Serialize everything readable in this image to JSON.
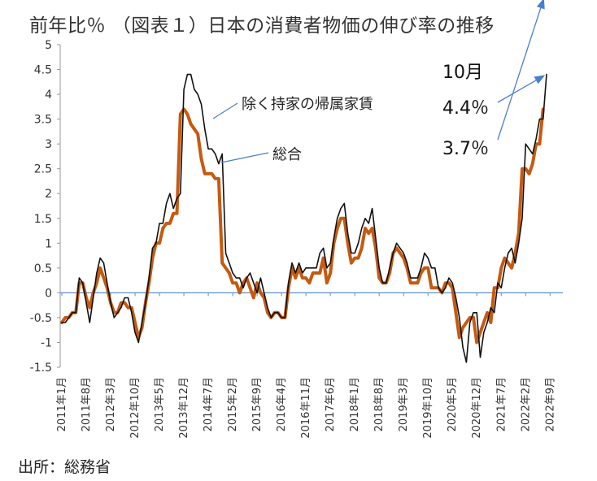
{
  "title": "前年比％ （図表１）日本の消費者物価の伸び率の推移",
  "source": "出所：総務省",
  "colors": {
    "core_rent": "#111111",
    "overall": "#c55a11",
    "zero_line": "#5b8fc9",
    "arrow": "#4a7fd0",
    "axis": "#999999"
  },
  "chart_data": {
    "type": "line",
    "title": "（図表１）日本の消費者物価の伸び率の推移",
    "ylabel": "前年比％",
    "xlabel": "",
    "ylim": [
      -1.5,
      5
    ],
    "yticks": [
      "5",
      "4.5",
      "4",
      "3.5",
      "3",
      "2.5",
      "2",
      "1.5",
      "1",
      "0.5",
      "0",
      "-0.5",
      "-1",
      "-1.5"
    ],
    "ytick_values": [
      5,
      4.5,
      4,
      3.5,
      3,
      2.5,
      2,
      1.5,
      1,
      0.5,
      0,
      -0.5,
      -1,
      -1.5
    ],
    "xtick_labels": [
      "2011年1月",
      "2011年8月",
      "2012年3月",
      "2012年10月",
      "2013年5月",
      "2013年12月",
      "2014年7月",
      "2015年2月",
      "2015年9月",
      "2016年4月",
      "2016年11月",
      "2017年6月",
      "2018年1月",
      "2018年8月",
      "2019年3月",
      "2019年10月",
      "2020年5月",
      "2020年12月",
      "2021年7月",
      "2022年2月",
      "2022年9月"
    ],
    "xtick_months": [
      1,
      8,
      15,
      22,
      29,
      36,
      43,
      50,
      57,
      64,
      71,
      78,
      85,
      92,
      99,
      106,
      113,
      120,
      127,
      134,
      141
    ],
    "grid": false,
    "x_start": "2011年1月",
    "series": [
      {
        "name": "除く持家の帰属家賃",
        "color": "#111111",
        "values": [
          -0.6,
          -0.6,
          -0.5,
          -0.4,
          -0.4,
          0.3,
          0.2,
          -0.2,
          -0.6,
          -0.1,
          0.4,
          0.7,
          0.6,
          0.2,
          -0.2,
          -0.5,
          -0.4,
          -0.3,
          -0.1,
          -0.1,
          -0.4,
          -0.8,
          -1.0,
          -0.6,
          -0.2,
          0.3,
          0.9,
          1.0,
          1.4,
          1.4,
          1.8,
          2.0,
          1.7,
          1.9,
          2.0,
          4.1,
          4.4,
          4.4,
          4.1,
          4.0,
          3.8,
          3.3,
          2.9,
          2.9,
          2.8,
          2.6,
          2.8,
          0.8,
          0.6,
          0.4,
          0.3,
          0.3,
          0.1,
          0.3,
          0.4,
          0.2,
          0.0,
          0.3,
          0.0,
          -0.3,
          -0.5,
          -0.4,
          -0.4,
          -0.5,
          -0.5,
          0.2,
          0.6,
          0.4,
          0.6,
          0.4,
          0.5,
          0.5,
          0.5,
          0.5,
          0.8,
          0.9,
          0.5,
          0.6,
          1.1,
          1.5,
          1.7,
          1.8,
          1.2,
          0.8,
          0.8,
          1.0,
          1.3,
          1.5,
          1.4,
          1.7,
          1.1,
          0.5,
          0.2,
          0.2,
          0.5,
          0.8,
          1.0,
          0.9,
          0.8,
          0.6,
          0.3,
          0.3,
          0.3,
          0.5,
          0.8,
          0.7,
          0.5,
          0.5,
          0.1,
          0.0,
          0.1,
          0.3,
          0.2,
          -0.1,
          -0.5,
          -1.1,
          -1.4,
          -0.6,
          -0.4,
          -0.4,
          -1.3,
          -0.8,
          -0.6,
          -0.3,
          -0.4,
          0.2,
          0.1,
          0.5,
          0.8,
          0.9,
          0.6,
          1.0,
          1.5,
          3.0,
          2.9,
          2.8,
          3.1,
          3.5,
          3.5,
          4.4
        ]
      },
      {
        "name": "総合",
        "color": "#c55a11",
        "values": [
          -0.6,
          -0.5,
          -0.5,
          -0.4,
          -0.4,
          0.2,
          0.2,
          -0.1,
          -0.3,
          0.0,
          0.2,
          0.5,
          0.3,
          0.1,
          -0.2,
          -0.4,
          -0.4,
          -0.2,
          -0.2,
          -0.3,
          -0.3,
          -0.6,
          -0.9,
          -0.7,
          -0.2,
          0.2,
          0.7,
          1.0,
          1.0,
          1.3,
          1.4,
          1.4,
          1.6,
          1.6,
          3.6,
          3.7,
          3.6,
          3.4,
          3.3,
          3.2,
          2.7,
          2.4,
          2.4,
          2.4,
          2.3,
          2.3,
          0.6,
          0.5,
          0.4,
          0.2,
          0.2,
          0.0,
          0.2,
          0.3,
          0.1,
          -0.1,
          0.2,
          0.0,
          -0.1,
          -0.4,
          -0.5,
          -0.4,
          -0.4,
          -0.5,
          -0.5,
          0.1,
          0.5,
          0.3,
          0.5,
          0.3,
          0.3,
          0.2,
          0.4,
          0.4,
          0.4,
          0.7,
          0.2,
          0.4,
          1.0,
          1.3,
          1.5,
          1.5,
          1.0,
          0.6,
          0.7,
          0.7,
          0.9,
          1.3,
          1.2,
          1.3,
          0.9,
          0.3,
          0.2,
          0.2,
          0.4,
          0.8,
          0.9,
          0.8,
          0.7,
          0.5,
          0.2,
          0.2,
          0.2,
          0.4,
          0.5,
          0.5,
          0.1,
          0.1,
          0.1,
          0.0,
          0.2,
          0.2,
          0.1,
          -0.4,
          -0.9,
          -0.7,
          -0.6,
          -0.5,
          -0.5,
          -1.0,
          -0.8,
          -0.6,
          -0.4,
          -0.6,
          0.1,
          0.1,
          0.5,
          0.7,
          0.6,
          0.5,
          0.8,
          1.2,
          2.5,
          2.5,
          2.4,
          2.6,
          3.0,
          3.0,
          3.7
        ]
      }
    ],
    "annotations": [
      {
        "id": "label_core",
        "text": "除く持家の帰属家賃"
      },
      {
        "id": "label_overall",
        "text": "総合"
      },
      {
        "id": "label_month",
        "text": "10月"
      },
      {
        "id": "label_core_value",
        "text": "4.4％"
      },
      {
        "id": "label_overall_value",
        "text": "3.7％"
      }
    ]
  }
}
